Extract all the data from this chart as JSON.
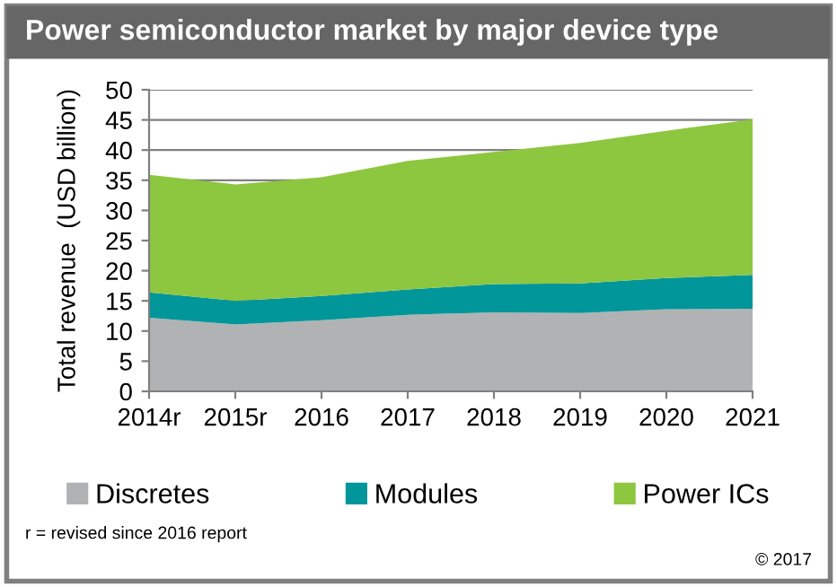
{
  "chart_data": {
    "type": "area",
    "stacked": true,
    "title": "Power semiconductor market by major device type",
    "ylabel": "Total revenue  (USD billion)",
    "categories": [
      "2014r",
      "2015r",
      "2016",
      "2017",
      "2018",
      "2019",
      "2020",
      "2021"
    ],
    "series": [
      {
        "name": "Discretes",
        "color": "#b1b2b4",
        "values": [
          12.2,
          11.1,
          11.8,
          12.7,
          13.1,
          13.0,
          13.6,
          13.7
        ]
      },
      {
        "name": "Modules",
        "color": "#00969a",
        "values": [
          4.2,
          3.9,
          4.0,
          4.2,
          4.7,
          4.9,
          5.2,
          5.6
        ]
      },
      {
        "name": "Power ICs",
        "color": "#8dc63f",
        "values": [
          19.5,
          19.3,
          19.7,
          21.3,
          21.9,
          23.3,
          24.4,
          25.8
        ]
      }
    ],
    "ylim": [
      0,
      50
    ],
    "yticks": [
      0,
      5,
      10,
      15,
      20,
      25,
      30,
      35,
      40,
      45,
      50
    ],
    "grid": "y",
    "legend": "bottom",
    "annotations": [
      "r = revised since 2016 report",
      "© 2017"
    ]
  }
}
